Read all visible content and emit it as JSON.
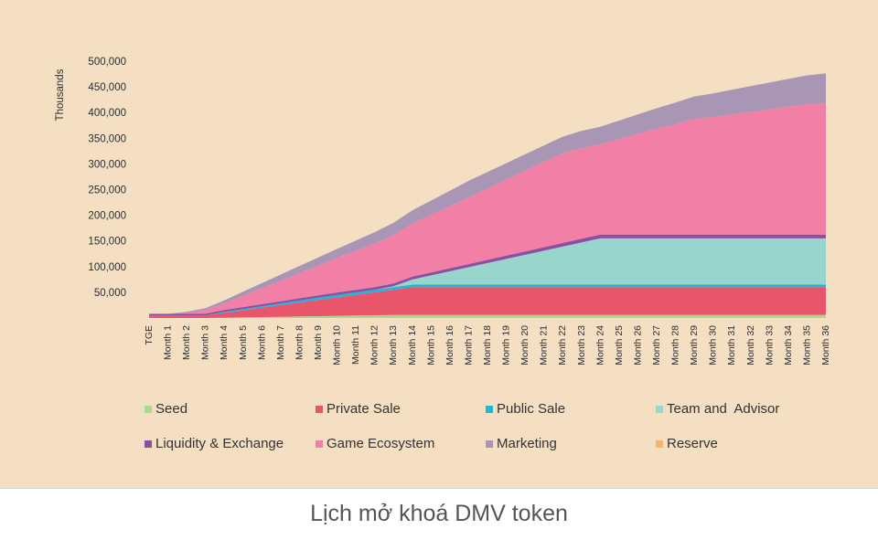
{
  "chart_data": {
    "type": "area",
    "stacked": true,
    "ylabel": "Thousands",
    "yticks": [
      "500,000",
      "450,000",
      "400,000",
      "350,000",
      "300,000",
      "250,000",
      "200,000",
      "150,000",
      "100,000",
      "50,000"
    ],
    "ylim": [
      0,
      500000
    ],
    "categories": [
      "TGE",
      "Month 1",
      "Month 2",
      "Month 3",
      "Month 4",
      "Month 5",
      "Month 6",
      "Month 7",
      "Month 8",
      "Month 9",
      "Month 10",
      "Month 11",
      "Month 12",
      "Month 13",
      "Month 14",
      "Month 15",
      "Month 16",
      "Month 17",
      "Month 18",
      "Month 19",
      "Month 20",
      "Month 21",
      "Month 22",
      "Month 23",
      "Month 24",
      "Month 25",
      "Month 26",
      "Month 27",
      "Month 28",
      "Month 29",
      "Month 30",
      "Month 31",
      "Month 32",
      "Month 33",
      "Month 34",
      "Month 35",
      "Month 36"
    ],
    "series": [
      {
        "name": "Seed",
        "color": "#a6d98b",
        "values": [
          0,
          0,
          0,
          0,
          600,
          1200,
          1800,
          2400,
          3000,
          3600,
          4200,
          4800,
          5400,
          6000,
          6000,
          6000,
          6000,
          6000,
          6000,
          6000,
          6000,
          6000,
          6000,
          6000,
          6000,
          6000,
          6000,
          6000,
          6000,
          6000,
          6000,
          6000,
          6000,
          6000,
          6000,
          6000,
          6000
        ]
      },
      {
        "name": "Private Sale",
        "color": "#e9566b",
        "values": [
          5000,
          5000,
          5000,
          5000,
          9400,
          13800,
          18200,
          22600,
          27000,
          31400,
          35800,
          40200,
          44600,
          49000,
          54000,
          54000,
          54000,
          54000,
          54000,
          54000,
          54000,
          54000,
          54000,
          54000,
          54000,
          54000,
          54000,
          54000,
          54000,
          54000,
          54000,
          54000,
          54000,
          54000,
          54000,
          54000,
          54000
        ]
      },
      {
        "name": "Public Sale",
        "color": "#22b5d6",
        "values": [
          0,
          0,
          0,
          0,
          2000,
          2500,
          3000,
          3500,
          4000,
          4500,
          5000,
          5000,
          5000,
          5000,
          5000,
          5000,
          5000,
          5000,
          5000,
          5000,
          5000,
          5000,
          5000,
          5000,
          5000,
          5000,
          5000,
          5000,
          5000,
          5000,
          5000,
          5000,
          5000,
          5000,
          5000,
          5000,
          5000
        ]
      },
      {
        "name": "Team and  Advisor",
        "color": "#98d5cc",
        "values": [
          0,
          0,
          0,
          0,
          0,
          0,
          0,
          0,
          0,
          0,
          0,
          0,
          0,
          2000,
          10000,
          18000,
          26000,
          34000,
          42000,
          50000,
          58000,
          66000,
          74000,
          82000,
          90000,
          90000,
          90000,
          90000,
          90000,
          90000,
          90000,
          90000,
          90000,
          90000,
          90000,
          90000,
          90000
        ]
      },
      {
        "name": "Liquidity & Exchange",
        "color": "#8a4fa3",
        "values": [
          3000,
          3000,
          3000,
          3200,
          3400,
          3600,
          3800,
          4000,
          4200,
          4400,
          4600,
          4800,
          5000,
          5200,
          5400,
          5600,
          5800,
          6000,
          6200,
          6400,
          6600,
          6800,
          7000,
          7200,
          7400,
          7400,
          7400,
          7400,
          7400,
          7400,
          7400,
          7400,
          7400,
          7400,
          7400,
          7400,
          7400
        ]
      },
      {
        "name": "Game Ecosystem",
        "color": "#f27fa6",
        "values": [
          0,
          0,
          2000,
          7000,
          13000,
          22000,
          31000,
          40000,
          49000,
          58000,
          67000,
          76000,
          85000,
          94000,
          103000,
          112000,
          121000,
          130000,
          139000,
          148000,
          157000,
          166000,
          175000,
          176000,
          176000,
          186000,
          196000,
          206000,
          215000,
          225000,
          229000,
          234000,
          239000,
          244000,
          249000,
          254000,
          256000
        ]
      },
      {
        "name": "Marketing",
        "color": "#a996b5",
        "values": [
          0,
          0,
          2000,
          4000,
          6000,
          8000,
          10000,
          12000,
          14000,
          16000,
          18000,
          20000,
          22000,
          24000,
          26000,
          28000,
          30000,
          32000,
          32000,
          32000,
          32000,
          32000,
          32000,
          34000,
          34000,
          36000,
          38000,
          40000,
          42000,
          44000,
          46000,
          48000,
          50000,
          52000,
          54000,
          56000,
          58000
        ]
      },
      {
        "name": "Reserve",
        "color": "#f7b46c",
        "values": [
          0,
          0,
          0,
          0,
          0,
          0,
          0,
          0,
          0,
          0,
          0,
          0,
          0,
          0,
          0,
          0,
          0,
          0,
          0,
          0,
          0,
          0,
          0,
          0,
          0,
          0,
          0,
          0,
          0,
          0,
          0,
          0,
          0,
          0,
          0,
          0,
          0
        ]
      }
    ]
  },
  "legend_rows": [
    [
      "Seed",
      "Private Sale",
      "Public Sale",
      "Team and  Advisor"
    ],
    [
      "Liquidity & Exchange",
      "Game Ecosystem",
      "Marketing",
      "Reserve"
    ]
  ],
  "caption": "Lịch mở khoá DMV token"
}
